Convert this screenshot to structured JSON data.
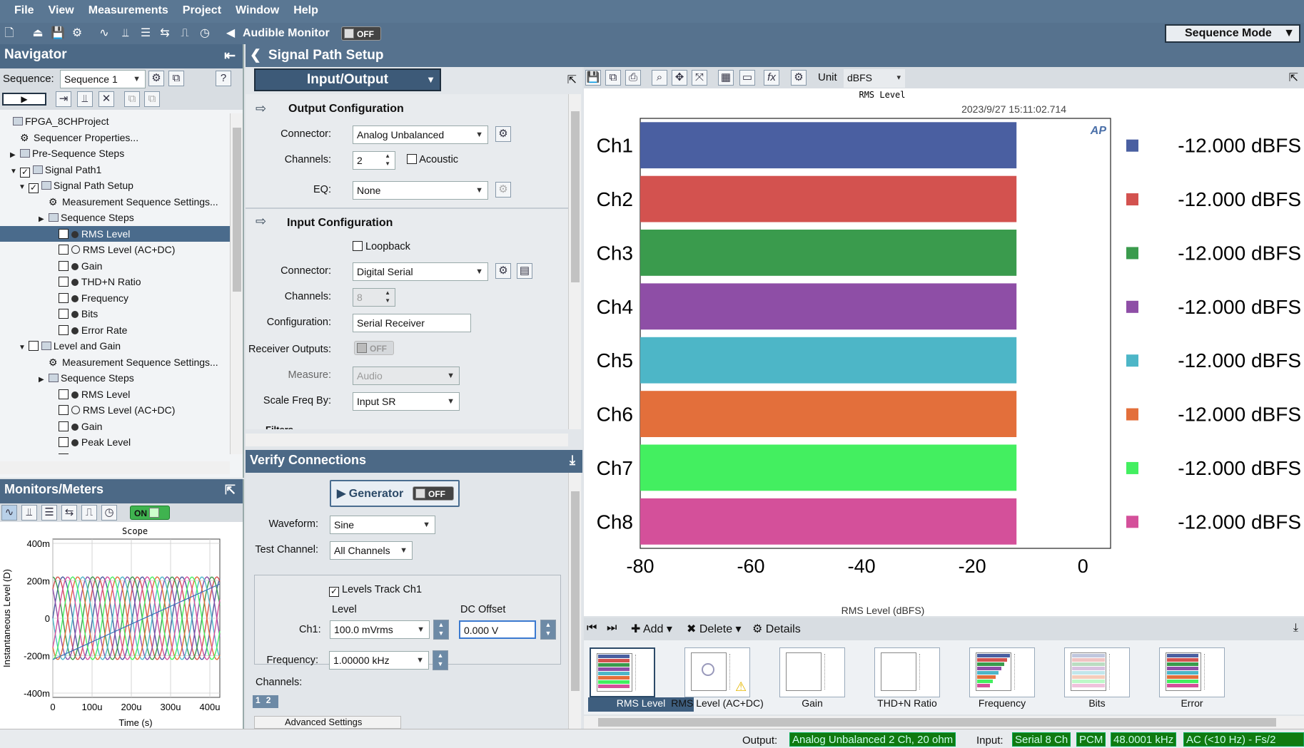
{
  "menu": [
    "File",
    "View",
    "Measurements",
    "Project",
    "Window",
    "Help"
  ],
  "toolbar": {
    "audible_monitor": "Audible Monitor",
    "audible_state": "OFF",
    "mode": "Sequence Mode"
  },
  "navigator": {
    "title": "Navigator",
    "seq_label": "Sequence:",
    "seq_value": "Sequence 1",
    "tree": [
      {
        "t": "FPGA_8CHProject",
        "lvl": 0,
        "k": "proj"
      },
      {
        "t": "Sequencer Properties...",
        "lvl": 1,
        "k": "gear"
      },
      {
        "t": "Pre-Sequence Steps",
        "lvl": 1,
        "k": "folder",
        "arrow": "▶"
      },
      {
        "t": "Signal Path1",
        "lvl": 1,
        "k": "sp",
        "arrow": "▼",
        "chk": "✓"
      },
      {
        "t": "Signal Path Setup",
        "lvl": 2,
        "k": "folder",
        "arrow": "▼",
        "chk": "✓"
      },
      {
        "t": "Measurement Sequence Settings...",
        "lvl": 3,
        "k": "gear"
      },
      {
        "t": "Sequence Steps",
        "lvl": 3,
        "k": "folder",
        "arrow": "▶"
      },
      {
        "t": "RMS Level",
        "lvl": 4,
        "k": "dot",
        "chk": "",
        "sel": true
      },
      {
        "t": "RMS Level (AC+DC)",
        "lvl": 4,
        "k": "nodot",
        "chk": ""
      },
      {
        "t": "Gain",
        "lvl": 4,
        "k": "dot",
        "chk": ""
      },
      {
        "t": "THD+N Ratio",
        "lvl": 4,
        "k": "dot",
        "chk": ""
      },
      {
        "t": "Frequency",
        "lvl": 4,
        "k": "dot",
        "chk": ""
      },
      {
        "t": "Bits",
        "lvl": 4,
        "k": "dot",
        "chk": ""
      },
      {
        "t": "Error Rate",
        "lvl": 4,
        "k": "dot",
        "chk": ""
      },
      {
        "t": "Level and Gain",
        "lvl": 2,
        "k": "folder",
        "arrow": "▼",
        "chk": ""
      },
      {
        "t": "Measurement Sequence Settings...",
        "lvl": 3,
        "k": "gear"
      },
      {
        "t": "Sequence Steps",
        "lvl": 3,
        "k": "folder",
        "arrow": "▶"
      },
      {
        "t": "RMS Level",
        "lvl": 4,
        "k": "dot",
        "chk": ""
      },
      {
        "t": "RMS Level (AC+DC)",
        "lvl": 4,
        "k": "nodot",
        "chk": ""
      },
      {
        "t": "Gain",
        "lvl": 4,
        "k": "dot",
        "chk": ""
      },
      {
        "t": "Peak Level",
        "lvl": 4,
        "k": "dot",
        "chk": ""
      },
      {
        "t": "Average Jitter Level",
        "lvl": 4,
        "k": "nodot",
        "chk": ""
      }
    ]
  },
  "monitors": {
    "title": "Monitors/Meters",
    "on": "ON",
    "scope_title": "Scope",
    "ylabel": "Instantaneous Level (D)",
    "xlabel": "Time (s)",
    "yticks": [
      "400m",
      "200m",
      "0",
      "-200m",
      "-400m"
    ],
    "xticks": [
      "0",
      "100u",
      "200u",
      "300u",
      "400u"
    ]
  },
  "sps": {
    "title": "Signal Path Setup",
    "io": "Input/Output",
    "out_title": "Output Configuration",
    "connector_lbl": "Connector:",
    "out_connector": "Analog Unbalanced",
    "channels_lbl": "Channels:",
    "out_channels": "2",
    "acoustic": "Acoustic",
    "eq_lbl": "EQ:",
    "eq": "None",
    "in_title": "Input Configuration",
    "loopback": "Loopback",
    "in_connector": "Digital Serial",
    "in_channels": "8",
    "config_lbl": "Configuration:",
    "config": "Serial Receiver",
    "recv_lbl": "Receiver Outputs:",
    "recv": "OFF",
    "measure_lbl": "Measure:",
    "measure": "Audio",
    "scale_lbl": "Scale Freq By:",
    "scale": "Input SR",
    "filters": "Filters"
  },
  "verify": {
    "title": "Verify Connections",
    "generator": "Generator",
    "gen_state": "OFF",
    "waveform_lbl": "Waveform:",
    "waveform": "Sine",
    "testch_lbl": "Test Channel:",
    "testch": "All Channels",
    "track": "Levels Track Ch1",
    "level_hdr": "Level",
    "dc_hdr": "DC Offset",
    "ch1_lbl": "Ch1:",
    "ch1_level": "100.0 mVrms",
    "ch1_dc": "0.000 V",
    "freq_lbl": "Frequency:",
    "freq": "1.00000 kHz",
    "channels_lbl": "Channels:",
    "ch_a": "1",
    "ch_b": "2",
    "advanced": "Advanced Settings"
  },
  "graph": {
    "unit_lbl": "Unit",
    "unit": "dBFS",
    "toplabel": "RMS Level",
    "timestamp": "2023/9/27 15:11:02.714",
    "logo": "AP"
  },
  "chart_data": {
    "type": "bar",
    "orientation": "horizontal",
    "categories": [
      "Ch1",
      "Ch2",
      "Ch3",
      "Ch4",
      "Ch5",
      "Ch6",
      "Ch7",
      "Ch8"
    ],
    "values": [
      -12,
      -12,
      -12,
      -12,
      -12,
      -12,
      -12,
      -12
    ],
    "colors": [
      "#4a5fa1",
      "#d3524f",
      "#3a9b4d",
      "#8e4ea6",
      "#4db6c7",
      "#e36f3b",
      "#43ef60",
      "#d4509a"
    ],
    "readouts": [
      "-12.000  dBFS",
      "-12.000  dBFS",
      "-12.000  dBFS",
      "-12.000  dBFS",
      "-12.000  dBFS",
      "-12.000  dBFS",
      "-12.000  dBFS",
      "-12.000  dBFS"
    ],
    "xlim": [
      -80,
      5
    ],
    "xticks": [
      "-80",
      "-60",
      "-40",
      "-20",
      "0"
    ],
    "xlabel": "RMS Level (dBFS)"
  },
  "results": {
    "add": "Add",
    "delete": "Delete",
    "details": "Details",
    "items": [
      "RMS Level",
      "RMS Level (AC+DC)",
      "Gain",
      "THD+N Ratio",
      "Frequency",
      "Bits",
      "Error"
    ]
  },
  "status": {
    "output_lbl": "Output:",
    "output": "Analog Unbalanced 2 Ch, 20 ohm",
    "input_lbl": "Input:",
    "in1": "Serial 8 Ch",
    "in2": "PCM",
    "in3": "48.0001 kHz",
    "in4": "AC (<10 Hz) - Fs/2"
  }
}
